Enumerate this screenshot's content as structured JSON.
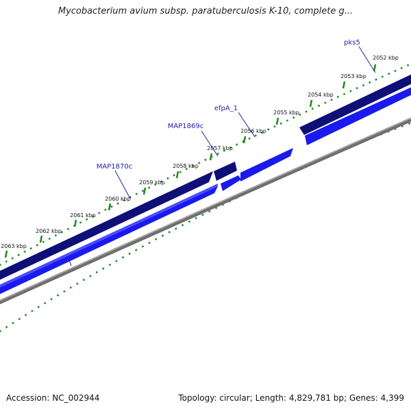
{
  "map": {
    "title": "Mycobacterium avium subsp. paratuberculosis K-10, complete g...",
    "ticks": [
      {
        "label": "2052 kbp"
      },
      {
        "label": "2053 kbp"
      },
      {
        "label": "2054 kbp"
      },
      {
        "label": "2055 kbp"
      },
      {
        "label": "2056 kbp"
      },
      {
        "label": "2057 kbp"
      },
      {
        "label": "2058 kbp"
      },
      {
        "label": "2059 kbp"
      },
      {
        "label": "2060 kbp"
      },
      {
        "label": "2061 kbp"
      },
      {
        "label": "2062 kbp"
      },
      {
        "label": "2063 kbp"
      }
    ],
    "genes": [
      {
        "label": "pks5"
      },
      {
        "label": "efpA_1"
      },
      {
        "label": "MAP1869c"
      },
      {
        "label": "MAP1870c"
      }
    ],
    "colors": {
      "forward_strand": "#0f0f78",
      "reverse_strand": "#1a1aef",
      "backbone": "#8c8c8c",
      "ticks": "#228b22",
      "labels": "#1e1ea8"
    }
  },
  "footer": {
    "accession": "Accession: NC_002944",
    "summary": "Topology: circular; Length: 4,829,781 bp; Genes: 4,399"
  }
}
